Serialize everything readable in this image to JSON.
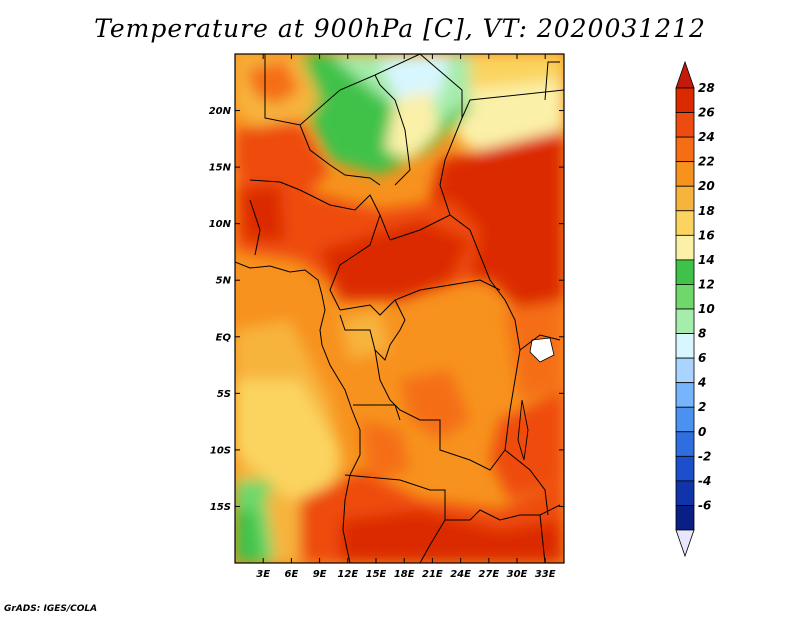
{
  "title": "Temperature at 900hPa [C], VT: 2020031212",
  "credit": "GrADS: IGES/COLA",
  "map": {
    "lat_labels": [
      "20N",
      "15N",
      "10N",
      "5N",
      "EQ",
      "5S",
      "10S",
      "15S"
    ],
    "lat_values": [
      20,
      15,
      10,
      5,
      0,
      -5,
      -10,
      -15
    ],
    "lon_labels": [
      "3E",
      "6E",
      "9E",
      "12E",
      "15E",
      "18E",
      "21E",
      "24E",
      "27E",
      "30E",
      "33E"
    ],
    "lon_values": [
      3,
      6,
      9,
      12,
      15,
      18,
      21,
      24,
      27,
      30,
      33
    ],
    "lon_range": [
      0,
      35
    ],
    "lat_range": [
      -20,
      25
    ]
  },
  "colorbar": {
    "labels": [
      "28",
      "26",
      "24",
      "22",
      "20",
      "18",
      "16",
      "14",
      "12",
      "10",
      "8",
      "6",
      "4",
      "2",
      "0",
      "-2",
      "-4",
      "-6"
    ],
    "colors": [
      "#c41a0a",
      "#dc2a00",
      "#ee4b10",
      "#f56e14",
      "#f7921e",
      "#f7b43c",
      "#fad45f",
      "#fbf0a8",
      "#3fc24a",
      "#6ed86b",
      "#a6ecaa",
      "#d8f6ff",
      "#a8d4ff",
      "#76b4fc",
      "#4b92f0",
      "#2f6ee0",
      "#1c4fcc",
      "#1234aa",
      "#0a1f85",
      "#e6e6ff"
    ]
  }
}
